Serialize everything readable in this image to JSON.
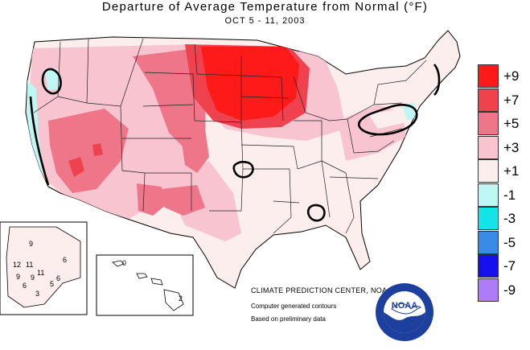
{
  "header": {
    "title": "Departure of Average Temperature from Normal (°F)",
    "subtitle": "OCT 5 - 11, 2003"
  },
  "legend": {
    "items": [
      {
        "label": "+9",
        "color": "#ff1a1a"
      },
      {
        "label": "+7",
        "color": "#f0414e"
      },
      {
        "label": "+5",
        "color": "#ee7688"
      },
      {
        "label": "+3",
        "color": "#f8c4cf"
      },
      {
        "label": "+1",
        "color": "#fdeeee"
      },
      {
        "label": "-1",
        "color": "#bff7f4"
      },
      {
        "label": "-3",
        "color": "#16e3e8"
      },
      {
        "label": "-5",
        "color": "#3a8ae8"
      },
      {
        "label": "-7",
        "color": "#1411ee"
      },
      {
        "label": "-9",
        "color": "#ae7cf8"
      }
    ]
  },
  "alaska_labels": [
    "9",
    "6",
    "12",
    "11",
    "11",
    "9",
    "9",
    "6",
    "5",
    "6",
    "3"
  ],
  "hawaii_labels": [
    "0",
    "2"
  ],
  "credits": {
    "agency": "CLIMATE PREDICTION CENTER, NOAA",
    "line2": "Computer generated contours",
    "line3": "Based on preliminary data"
  },
  "logo": {
    "text": "NOAA"
  }
}
